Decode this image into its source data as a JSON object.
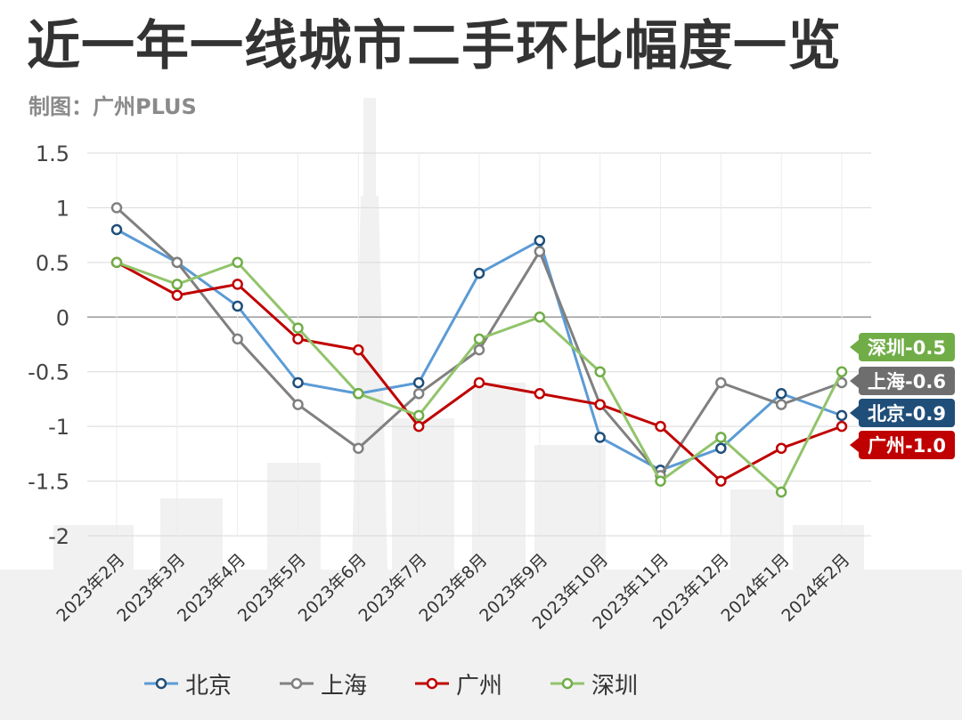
{
  "title": "近一年一线城市二手环比幅度一览",
  "subtitle": "制图：广州PLUS",
  "chart_data": {
    "type": "line",
    "x": [
      "2023年2月",
      "2023年3月",
      "2023年4月",
      "2023年5月",
      "2023年6月",
      "2023年7月",
      "2023年8月",
      "2023年9月",
      "2023年10月",
      "2023年11月",
      "2023年12月",
      "2024年1月",
      "2024年2月"
    ],
    "ylim": [
      -2,
      1.5
    ],
    "yticks": [
      "1.5",
      "1",
      "0.5",
      "0",
      "-0.5",
      "-1",
      "-1.5",
      "-2"
    ],
    "grid": true,
    "legend_position": "bottom",
    "series": [
      {
        "name": "北京",
        "color": "#5b9bd5",
        "marker_color": "#1f4e79",
        "values": [
          0.8,
          0.5,
          0.1,
          -0.6,
          -0.7,
          -0.6,
          0.4,
          0.7,
          -1.1,
          -1.4,
          -1.2,
          -0.7,
          -0.9
        ],
        "end_label": "北京-0.9",
        "label_color": "#1f4e79"
      },
      {
        "name": "上海",
        "color": "#808080",
        "marker_color": "#808080",
        "values": [
          1.0,
          0.5,
          -0.2,
          -0.8,
          -1.2,
          -0.7,
          -0.3,
          0.6,
          -0.8,
          -1.45,
          -0.6,
          -0.8,
          -0.6
        ],
        "end_label": "上海-0.6",
        "label_color": "#6e6e6e"
      },
      {
        "name": "广州",
        "color": "#c00000",
        "marker_color": "#c00000",
        "values": [
          0.5,
          0.2,
          0.3,
          -0.2,
          -0.3,
          -1.0,
          -0.6,
          -0.7,
          -0.8,
          -1.0,
          -1.5,
          -1.2,
          -1.0
        ],
        "end_label": "广州-1.0",
        "label_color": "#c00000"
      },
      {
        "name": "深圳",
        "color": "#92c46b",
        "marker_color": "#70ad47",
        "values": [
          0.5,
          0.3,
          0.5,
          -0.1,
          -0.7,
          -0.9,
          -0.2,
          0.0,
          -0.5,
          -1.5,
          -1.1,
          -1.6,
          -0.5
        ],
        "end_label": "深圳-0.5",
        "label_color": "#70ad47"
      }
    ]
  }
}
